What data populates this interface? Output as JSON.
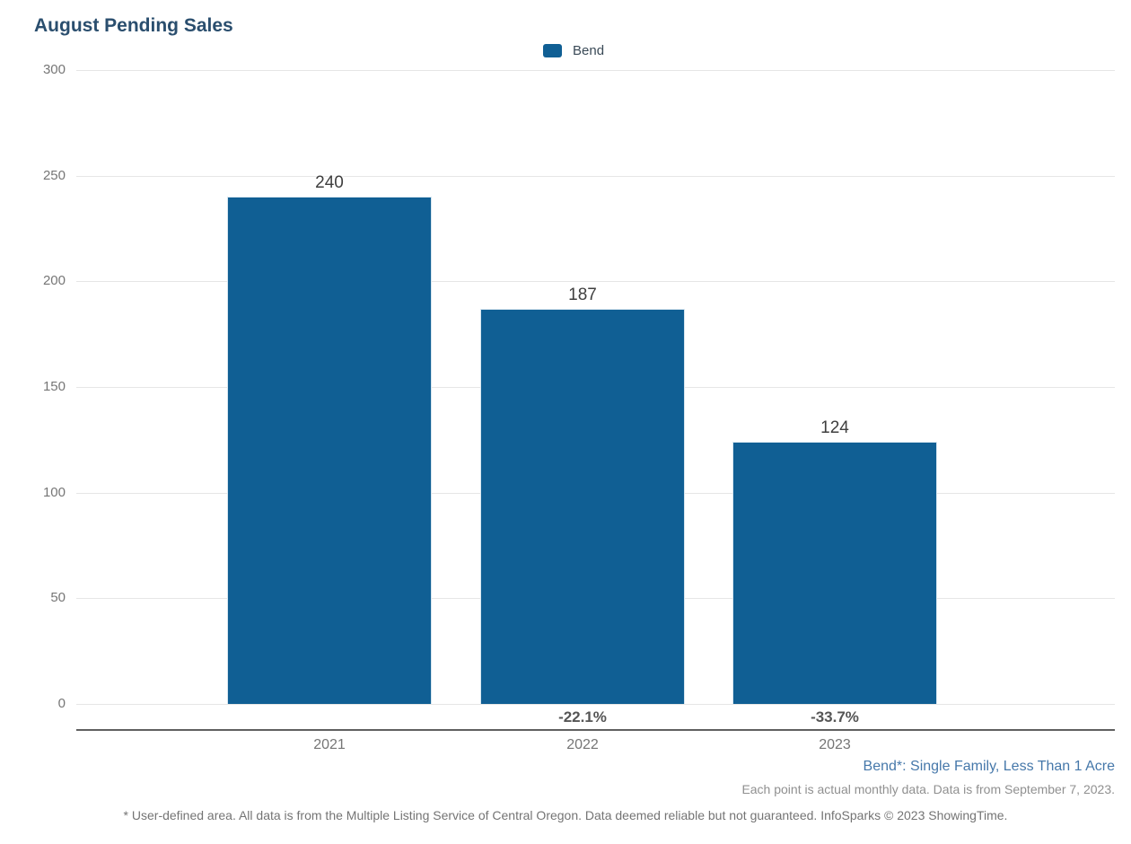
{
  "title": "August Pending Sales",
  "legend": {
    "label": "Bend",
    "swatch_color": "#105f94"
  },
  "chart_data": {
    "type": "bar",
    "title": "August Pending Sales",
    "categories": [
      "2021",
      "2022",
      "2023"
    ],
    "series": [
      {
        "name": "Bend",
        "values": [
          240,
          187,
          124
        ],
        "color": "#105f94"
      }
    ],
    "value_labels": [
      "240",
      "187",
      "124"
    ],
    "pct_change_labels": [
      "",
      "-22.1%",
      "-33.7%"
    ],
    "xlabel": "",
    "ylabel": "",
    "ylim": [
      0,
      300
    ],
    "yticks": [
      0,
      50,
      100,
      150,
      200,
      250,
      300
    ],
    "grid": true,
    "legend_position": "top-center"
  },
  "footnotes": {
    "series_note": "Bend*: Single Family, Less Than 1 Acre",
    "data_note": "Each point is actual monthly data. Data is from September 7, 2023.",
    "disclaimer": "* User-defined area. All data is from the Multiple Listing Service of Central Oregon. Data deemed reliable but not guaranteed. InfoSparks © 2023 ShowingTime."
  }
}
